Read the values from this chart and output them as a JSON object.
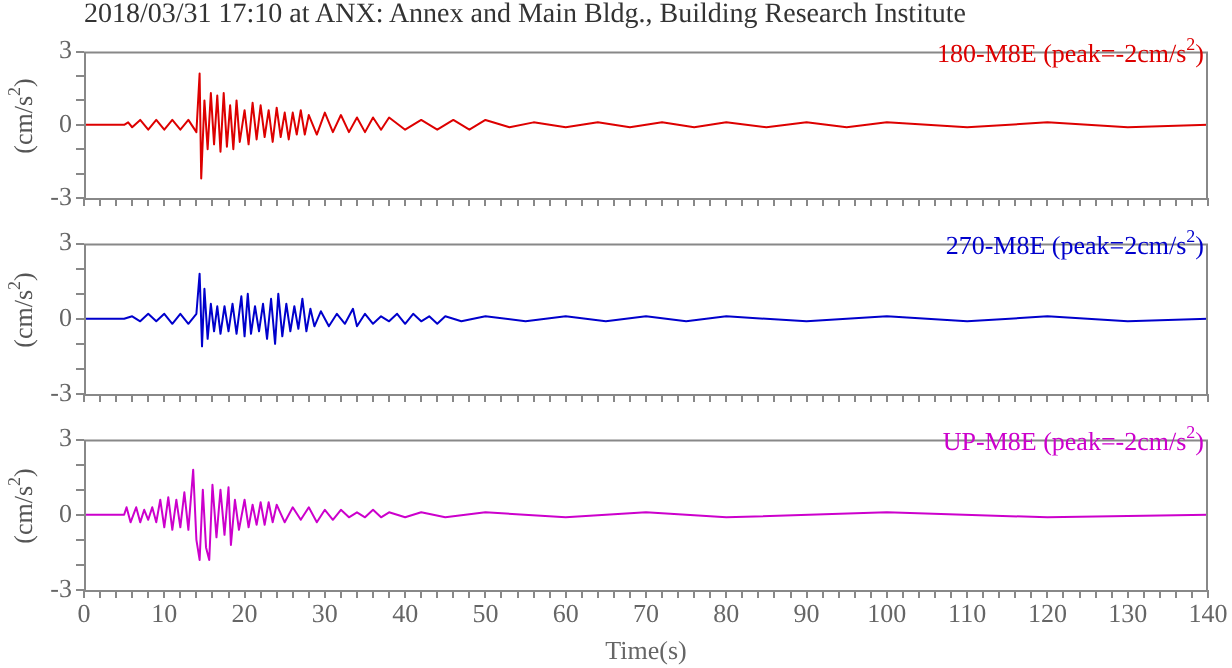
{
  "chart_data": [
    {
      "type": "line",
      "title": "2018/03/31 17:10 at ANX: Annex and Main Bldg., Building Research Institute",
      "ylabel": "(cm/s$^{2}$)",
      "xlim": [
        0,
        140
      ],
      "ylim": [
        -3,
        3
      ],
      "tick_labels": "y",
      "grid": false,
      "legend": false,
      "marker": "none",
      "line_style": "solid",
      "xticks": [
        0,
        {
          "value": 2,
          "label": null
        },
        {
          "value": 4,
          "label": null
        },
        {
          "value": 6,
          "label": null
        },
        {
          "value": 8,
          "label": null
        },
        10,
        {
          "value": 12,
          "label": null
        },
        {
          "value": 14,
          "label": null
        },
        {
          "value": 16,
          "label": null
        },
        {
          "value": 18,
          "label": null
        },
        20,
        {
          "value": 22,
          "label": null
        },
        {
          "value": 24,
          "label": null
        },
        {
          "value": 26,
          "label": null
        },
        {
          "value": 28,
          "label": null
        },
        30,
        {
          "value": 32,
          "label": null
        },
        {
          "value": 34,
          "label": null
        },
        {
          "value": 36,
          "label": null
        },
        {
          "value": 38,
          "label": null
        },
        40,
        {
          "value": 42,
          "label": null
        },
        {
          "value": 44,
          "label": null
        },
        {
          "value": 46,
          "label": null
        },
        {
          "value": 48,
          "label": null
        },
        50,
        {
          "value": 52,
          "label": null
        },
        {
          "value": 54,
          "label": null
        },
        {
          "value": 56,
          "label": null
        },
        {
          "value": 58,
          "label": null
        },
        60,
        {
          "value": 62,
          "label": null
        },
        {
          "value": 64,
          "label": null
        },
        {
          "value": 66,
          "label": null
        },
        {
          "value": 68,
          "label": null
        },
        70,
        {
          "value": 72,
          "label": null
        },
        {
          "value": 74,
          "label": null
        },
        {
          "value": 76,
          "label": null
        },
        {
          "value": 78,
          "label": null
        },
        80,
        {
          "value": 82,
          "label": null
        },
        {
          "value": 84,
          "label": null
        },
        {
          "value": 86,
          "label": null
        },
        {
          "value": 88,
          "label": null
        },
        90,
        {
          "value": 92,
          "label": null
        },
        {
          "value": 94,
          "label": null
        },
        {
          "value": 96,
          "label": null
        },
        {
          "value": 98,
          "label": null
        },
        100,
        {
          "value": 102,
          "label": null
        },
        {
          "value": 104,
          "label": null
        },
        {
          "value": 106,
          "label": null
        },
        {
          "value": 108,
          "label": null
        },
        110,
        {
          "value": 112,
          "label": null
        },
        {
          "value": 114,
          "label": null
        },
        {
          "value": 116,
          "label": null
        },
        {
          "value": 118,
          "label": null
        },
        120,
        {
          "value": 122,
          "label": null
        },
        {
          "value": 124,
          "label": null
        },
        {
          "value": 126,
          "label": null
        },
        {
          "value": 128,
          "label": null
        },
        130,
        {
          "value": 132,
          "label": null
        },
        {
          "value": 134,
          "label": null
        },
        {
          "value": 136,
          "label": null
        },
        {
          "value": 138,
          "label": null
        },
        140
      ],
      "yticks": [
        -3,
        {
          "value": -2,
          "label": null
        },
        {
          "value": -1,
          "label": null
        },
        0,
        {
          "value": 1,
          "label": null
        },
        {
          "value": 2,
          "label": null
        },
        3
      ],
      "series": [
        {
          "name": "180-M8E (peak=-2cm/s$^{2}$)",
          "color": "#dd0000",
          "x": [
            0,
            5,
            5.5,
            6,
            7,
            8,
            9,
            10,
            11,
            12,
            13,
            14,
            14.4,
            14.6,
            15,
            15.4,
            15.8,
            16.2,
            16.6,
            17,
            17.4,
            17.8,
            18.2,
            18.6,
            19,
            19.4,
            20,
            20.5,
            21,
            21.5,
            22,
            22.5,
            23,
            23.5,
            24,
            24.5,
            25,
            25.5,
            26,
            26.5,
            27,
            27.5,
            28,
            29,
            30,
            31,
            32,
            33,
            34,
            35,
            36,
            37,
            38,
            40,
            42,
            44,
            46,
            48,
            50,
            53,
            56,
            60,
            64,
            68,
            72,
            76,
            80,
            85,
            90,
            95,
            100,
            110,
            120,
            130,
            140
          ],
          "values": [
            0,
            0,
            0.1,
            -0.1,
            0.2,
            -0.2,
            0.2,
            -0.2,
            0.2,
            -0.2,
            0.2,
            -0.3,
            2.1,
            -2.2,
            1.0,
            -1.0,
            1.3,
            -0.8,
            1.2,
            -1.1,
            1.3,
            -0.9,
            0.8,
            -1.0,
            1.0,
            -0.7,
            0.6,
            -0.8,
            0.9,
            -0.6,
            0.8,
            -0.5,
            0.6,
            -0.7,
            0.7,
            -0.5,
            0.5,
            -0.6,
            0.5,
            -0.4,
            0.6,
            -0.4,
            0.4,
            -0.4,
            0.5,
            -0.3,
            0.4,
            -0.3,
            0.3,
            -0.3,
            0.3,
            -0.2,
            0.3,
            -0.2,
            0.2,
            -0.2,
            0.2,
            -0.2,
            0.2,
            -0.1,
            0.1,
            -0.1,
            0.1,
            -0.1,
            0.1,
            -0.1,
            0.1,
            -0.1,
            0.1,
            -0.1,
            0.1,
            -0.1,
            0.1,
            -0.1,
            0
          ]
        }
      ]
    },
    {
      "type": "line",
      "ylabel": "(cm/s$^{2}$)",
      "xlim": [
        0,
        140
      ],
      "ylim": [
        -3,
        3
      ],
      "tick_labels": "y",
      "grid": false,
      "legend": false,
      "marker": "none",
      "line_style": "solid",
      "xticks": [
        0,
        {
          "value": 2,
          "label": null
        },
        {
          "value": 4,
          "label": null
        },
        {
          "value": 6,
          "label": null
        },
        {
          "value": 8,
          "label": null
        },
        10,
        {
          "value": 12,
          "label": null
        },
        {
          "value": 14,
          "label": null
        },
        {
          "value": 16,
          "label": null
        },
        {
          "value": 18,
          "label": null
        },
        20,
        {
          "value": 22,
          "label": null
        },
        {
          "value": 24,
          "label": null
        },
        {
          "value": 26,
          "label": null
        },
        {
          "value": 28,
          "label": null
        },
        30,
        {
          "value": 32,
          "label": null
        },
        {
          "value": 34,
          "label": null
        },
        {
          "value": 36,
          "label": null
        },
        {
          "value": 38,
          "label": null
        },
        40,
        {
          "value": 42,
          "label": null
        },
        {
          "value": 44,
          "label": null
        },
        {
          "value": 46,
          "label": null
        },
        {
          "value": 48,
          "label": null
        },
        50,
        {
          "value": 52,
          "label": null
        },
        {
          "value": 54,
          "label": null
        },
        {
          "value": 56,
          "label": null
        },
        {
          "value": 58,
          "label": null
        },
        60,
        {
          "value": 62,
          "label": null
        },
        {
          "value": 64,
          "label": null
        },
        {
          "value": 66,
          "label": null
        },
        {
          "value": 68,
          "label": null
        },
        70,
        {
          "value": 72,
          "label": null
        },
        {
          "value": 74,
          "label": null
        },
        {
          "value": 76,
          "label": null
        },
        {
          "value": 78,
          "label": null
        },
        80,
        {
          "value": 82,
          "label": null
        },
        {
          "value": 84,
          "label": null
        },
        {
          "value": 86,
          "label": null
        },
        {
          "value": 88,
          "label": null
        },
        90,
        {
          "value": 92,
          "label": null
        },
        {
          "value": 94,
          "label": null
        },
        {
          "value": 96,
          "label": null
        },
        {
          "value": 98,
          "label": null
        },
        100,
        {
          "value": 102,
          "label": null
        },
        {
          "value": 104,
          "label": null
        },
        {
          "value": 106,
          "label": null
        },
        {
          "value": 108,
          "label": null
        },
        110,
        {
          "value": 112,
          "label": null
        },
        {
          "value": 114,
          "label": null
        },
        {
          "value": 116,
          "label": null
        },
        {
          "value": 118,
          "label": null
        },
        120,
        {
          "value": 122,
          "label": null
        },
        {
          "value": 124,
          "label": null
        },
        {
          "value": 126,
          "label": null
        },
        {
          "value": 128,
          "label": null
        },
        130,
        {
          "value": 132,
          "label": null
        },
        {
          "value": 134,
          "label": null
        },
        {
          "value": 136,
          "label": null
        },
        {
          "value": 138,
          "label": null
        },
        140
      ],
      "yticks": [
        -3,
        {
          "value": -2,
          "label": null
        },
        {
          "value": -1,
          "label": null
        },
        0,
        {
          "value": 1,
          "label": null
        },
        {
          "value": 2,
          "label": null
        },
        3
      ],
      "series": [
        {
          "name": "270-M8E (peak=2cm/s$^{2}$)",
          "color": "#0000cc",
          "x": [
            0,
            5,
            6,
            7,
            8,
            9,
            10,
            11,
            12,
            13,
            14,
            14.4,
            14.7,
            15,
            15.4,
            15.8,
            16.2,
            16.6,
            17,
            17.5,
            18,
            18.5,
            19,
            19.6,
            20,
            20.4,
            20.8,
            21.3,
            21.8,
            22.3,
            22.8,
            23.3,
            23.8,
            24.2,
            24.7,
            25.2,
            25.7,
            26.2,
            26.7,
            27.2,
            27.7,
            28.2,
            28.7,
            29.5,
            30.5,
            31.5,
            32.5,
            33.5,
            34,
            35,
            36,
            37,
            38,
            39,
            40,
            41,
            42,
            43,
            44,
            45,
            47,
            50,
            55,
            60,
            65,
            70,
            75,
            80,
            90,
            100,
            110,
            120,
            130,
            140
          ],
          "values": [
            0,
            0,
            0.1,
            -0.1,
            0.2,
            -0.1,
            0.2,
            -0.2,
            0.2,
            -0.2,
            0.2,
            1.8,
            -1.1,
            1.2,
            -0.8,
            0.6,
            -0.5,
            0.5,
            -0.6,
            0.5,
            -0.5,
            0.6,
            -0.6,
            0.9,
            -0.7,
            1.0,
            -0.6,
            0.5,
            -0.5,
            0.6,
            -0.8,
            0.8,
            -1.0,
            1.0,
            -0.7,
            0.6,
            -0.5,
            0.5,
            -0.4,
            0.8,
            -0.5,
            0.4,
            -0.3,
            0.3,
            -0.3,
            0.2,
            -0.2,
            0.4,
            -0.3,
            0.2,
            -0.2,
            0.1,
            -0.1,
            0.2,
            -0.2,
            0.2,
            -0.1,
            0.1,
            -0.2,
            0.1,
            -0.1,
            0.1,
            -0.1,
            0.1,
            -0.1,
            0.1,
            -0.1,
            0.1,
            -0.1,
            0.1,
            -0.1,
            0.1,
            -0.1,
            0
          ]
        }
      ]
    },
    {
      "type": "line",
      "ylabel": "(cm/s$^{2}$)",
      "xlabel": "Time(s)",
      "xlim": [
        0,
        140
      ],
      "ylim": [
        -3,
        3
      ],
      "grid": false,
      "legend": false,
      "marker": "none",
      "line_style": "solid",
      "xticks": [
        0,
        {
          "value": 2,
          "label": null
        },
        {
          "value": 4,
          "label": null
        },
        {
          "value": 6,
          "label": null
        },
        {
          "value": 8,
          "label": null
        },
        10,
        {
          "value": 12,
          "label": null
        },
        {
          "value": 14,
          "label": null
        },
        {
          "value": 16,
          "label": null
        },
        {
          "value": 18,
          "label": null
        },
        20,
        {
          "value": 22,
          "label": null
        },
        {
          "value": 24,
          "label": null
        },
        {
          "value": 26,
          "label": null
        },
        {
          "value": 28,
          "label": null
        },
        30,
        {
          "value": 32,
          "label": null
        },
        {
          "value": 34,
          "label": null
        },
        {
          "value": 36,
          "label": null
        },
        {
          "value": 38,
          "label": null
        },
        40,
        {
          "value": 42,
          "label": null
        },
        {
          "value": 44,
          "label": null
        },
        {
          "value": 46,
          "label": null
        },
        {
          "value": 48,
          "label": null
        },
        50,
        {
          "value": 52,
          "label": null
        },
        {
          "value": 54,
          "label": null
        },
        {
          "value": 56,
          "label": null
        },
        {
          "value": 58,
          "label": null
        },
        60,
        {
          "value": 62,
          "label": null
        },
        {
          "value": 64,
          "label": null
        },
        {
          "value": 66,
          "label": null
        },
        {
          "value": 68,
          "label": null
        },
        70,
        {
          "value": 72,
          "label": null
        },
        {
          "value": 74,
          "label": null
        },
        {
          "value": 76,
          "label": null
        },
        {
          "value": 78,
          "label": null
        },
        80,
        {
          "value": 82,
          "label": null
        },
        {
          "value": 84,
          "label": null
        },
        {
          "value": 86,
          "label": null
        },
        {
          "value": 88,
          "label": null
        },
        90,
        {
          "value": 92,
          "label": null
        },
        {
          "value": 94,
          "label": null
        },
        {
          "value": 96,
          "label": null
        },
        {
          "value": 98,
          "label": null
        },
        100,
        {
          "value": 102,
          "label": null
        },
        {
          "value": 104,
          "label": null
        },
        {
          "value": 106,
          "label": null
        },
        {
          "value": 108,
          "label": null
        },
        110,
        {
          "value": 112,
          "label": null
        },
        {
          "value": 114,
          "label": null
        },
        {
          "value": 116,
          "label": null
        },
        {
          "value": 118,
          "label": null
        },
        120,
        {
          "value": 122,
          "label": null
        },
        {
          "value": 124,
          "label": null
        },
        {
          "value": 126,
          "label": null
        },
        {
          "value": 128,
          "label": null
        },
        130,
        {
          "value": 132,
          "label": null
        },
        {
          "value": 134,
          "label": null
        },
        {
          "value": 136,
          "label": null
        },
        {
          "value": 138,
          "label": null
        },
        140
      ],
      "yticks": [
        -3,
        {
          "value": -2,
          "label": null
        },
        {
          "value": -1,
          "label": null
        },
        0,
        {
          "value": 1,
          "label": null
        },
        {
          "value": 2,
          "label": null
        },
        3
      ],
      "series": [
        {
          "name": "UP-M8E (peak=-2cm/s$^{2}$)",
          "color": "#cc00cc",
          "x": [
            0,
            5,
            5.3,
            5.8,
            6.5,
            7,
            7.5,
            8,
            8.5,
            9,
            9.5,
            10,
            10.5,
            11,
            11.5,
            12,
            12.5,
            13,
            13.6,
            14,
            14.4,
            14.8,
            15.2,
            15.6,
            16,
            16.5,
            17,
            17.5,
            18,
            18.3,
            18.8,
            19.3,
            20,
            20.5,
            21,
            21.5,
            22,
            22.5,
            23,
            23.5,
            24,
            25,
            26,
            27,
            28,
            29,
            30,
            31,
            32,
            33,
            34,
            35,
            36,
            37,
            38,
            40,
            42,
            45,
            50,
            60,
            70,
            80,
            100,
            120,
            140
          ],
          "values": [
            0,
            0,
            0.3,
            -0.3,
            0.3,
            -0.3,
            0.2,
            -0.2,
            0.3,
            -0.3,
            0.6,
            -0.5,
            0.7,
            -0.6,
            0.6,
            -0.5,
            0.9,
            -0.6,
            1.8,
            -1.0,
            -1.8,
            1.0,
            -1.3,
            -1.8,
            1.2,
            -0.9,
            1.0,
            -0.8,
            1.1,
            -1.2,
            0.6,
            -0.6,
            0.6,
            -0.5,
            0.4,
            -0.4,
            0.5,
            -0.4,
            0.5,
            -0.3,
            0.4,
            -0.3,
            0.3,
            -0.2,
            0.3,
            -0.3,
            0.2,
            -0.2,
            0.2,
            -0.1,
            0.1,
            -0.1,
            0.2,
            -0.1,
            0.1,
            -0.1,
            0.1,
            -0.1,
            0.1,
            -0.1,
            0.1,
            -0.1,
            0.1,
            -0.1,
            0
          ]
        }
      ]
    }
  ]
}
